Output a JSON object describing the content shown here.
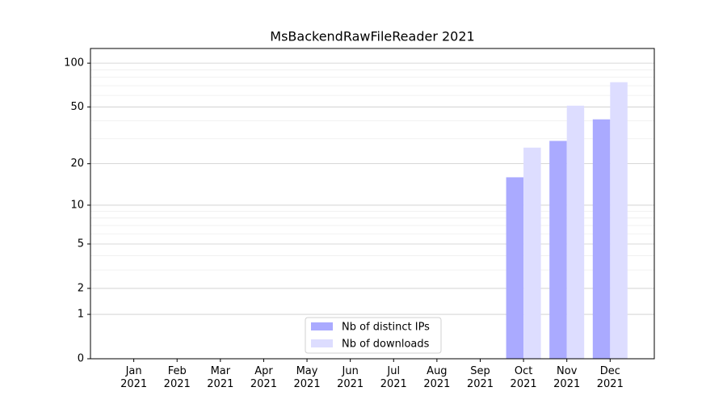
{
  "chart_data": {
    "type": "bar",
    "title": "MsBackendRawFileReader 2021",
    "categories": [
      "Jan\n2021",
      "Feb\n2021",
      "Mar\n2021",
      "Apr\n2021",
      "May\n2021",
      "Jun\n2021",
      "Jul\n2021",
      "Aug\n2021",
      "Sep\n2021",
      "Oct\n2021",
      "Nov\n2021",
      "Dec\n2021"
    ],
    "series": [
      {
        "name": "Nb of distinct IPs",
        "color": "#aaaaff",
        "values": [
          0,
          0,
          0,
          0,
          0,
          0,
          0,
          0,
          0,
          16,
          29,
          41
        ]
      },
      {
        "name": "Nb of downloads",
        "color": "#ddddff",
        "values": [
          0,
          0,
          0,
          0,
          0,
          0,
          0,
          0,
          0,
          26,
          51,
          74
        ]
      }
    ],
    "yscale": "log1p",
    "ylim": [
      0,
      126
    ],
    "yticks": [
      0,
      1,
      2,
      5,
      10,
      20,
      50,
      100
    ],
    "minor_grid": [
      3,
      4,
      6,
      7,
      8,
      9,
      30,
      40,
      60,
      70,
      80,
      90
    ],
    "grid": true,
    "legend": "bottom"
  }
}
